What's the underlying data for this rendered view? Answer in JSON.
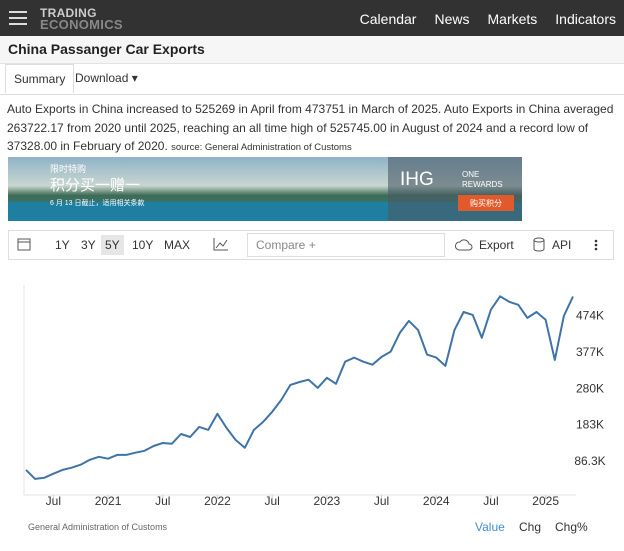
{
  "header": {
    "logo": [
      "TRADING",
      "ECONOMICS"
    ],
    "nav": [
      "Calendar",
      "News",
      "Markets",
      "Indicators"
    ]
  },
  "page_title": "China Passanger Car Exports",
  "tabs": [
    "Summary",
    "Download"
  ],
  "description": {
    "text": "Auto Exports in China increased to 525269 in April from 473751 in March of 2025. Auto Exports in China averaged 263722.17 from 2020 until 2025, reaching an all time high of 525745.00 in August of 2024 and a record low of 37328.00 in February of 2020.",
    "source": "source: General Administration of Customs"
  },
  "ad": {
    "tag": "限时特购",
    "headline": "积分买一赠一",
    "sub": "6 月 13 日截止，适用相关条款",
    "brand": "IHG",
    "program": [
      "ONE",
      "REWARDS"
    ],
    "button": "购买积分"
  },
  "toolbar": {
    "ranges": [
      "1Y",
      "3Y",
      "5Y",
      "10Y",
      "MAX"
    ],
    "compare": "Compare +",
    "export": "Export",
    "api": "API"
  },
  "chart_data": {
    "type": "line",
    "x": [
      "2020-04",
      "2020-05",
      "2020-06",
      "2020-07",
      "2020-08",
      "2020-09",
      "2020-10",
      "2020-11",
      "2020-12",
      "2021-01",
      "2021-02",
      "2021-03",
      "2021-04",
      "2021-05",
      "2021-06",
      "2021-07",
      "2021-08",
      "2021-09",
      "2021-10",
      "2021-11",
      "2021-12",
      "2022-01",
      "2022-02",
      "2022-03",
      "2022-04",
      "2022-05",
      "2022-06",
      "2022-07",
      "2022-08",
      "2022-09",
      "2022-10",
      "2022-11",
      "2022-12",
      "2023-01",
      "2023-02",
      "2023-03",
      "2023-04",
      "2023-05",
      "2023-06",
      "2023-07",
      "2023-08",
      "2023-09",
      "2023-10",
      "2023-11",
      "2023-12",
      "2024-01",
      "2024-02",
      "2024-03",
      "2024-04",
      "2024-05",
      "2024-06",
      "2024-07",
      "2024-08",
      "2024-09",
      "2024-10",
      "2024-11",
      "2024-12",
      "2025-01",
      "2025-02",
      "2025-03",
      "2025-04"
    ],
    "series": [
      {
        "color": "#3f74a8",
        "values": [
          62000,
          38000,
          41000,
          52000,
          62000,
          68000,
          76000,
          89000,
          97000,
          92000,
          102000,
          102000,
          108000,
          113000,
          126000,
          134000,
          132000,
          158000,
          150000,
          177000,
          169000,
          212000,
          174000,
          142000,
          121000,
          169000,
          190000,
          217000,
          249000,
          289000,
          297000,
          303000,
          281000,
          308000,
          292000,
          351000,
          362000,
          351000,
          343000,
          364000,
          378000,
          428000,
          460000,
          436000,
          370000,
          362000,
          340000,
          436000,
          484000,
          476000,
          415000,
          490000,
          525745,
          511000,
          503000,
          468000,
          484000,
          463000,
          356000,
          473751,
          525269
        ]
      }
    ],
    "xlim": [
      "2020-04",
      "2025-04"
    ],
    "xticks": [
      {
        "value": "2020-07",
        "label": "Jul"
      },
      {
        "value": "2021-01",
        "label": "2021"
      },
      {
        "value": "2021-07",
        "label": "Jul"
      },
      {
        "value": "2022-01",
        "label": "2022"
      },
      {
        "value": "2022-07",
        "label": "Jul"
      },
      {
        "value": "2023-01",
        "label": "2023"
      },
      {
        "value": "2023-07",
        "label": "Jul"
      },
      {
        "value": "2024-01",
        "label": "2024"
      },
      {
        "value": "2024-07",
        "label": "Jul"
      },
      {
        "value": "2025-01",
        "label": "2025"
      }
    ],
    "ylim": [
      -5000,
      556000
    ],
    "yticks": [
      {
        "value": 86300,
        "label": "86.3K"
      },
      {
        "value": 183000,
        "label": "183K"
      },
      {
        "value": 280000,
        "label": "280K"
      },
      {
        "value": 377000,
        "label": "377K"
      },
      {
        "value": 474000,
        "label": "474K"
      }
    ],
    "grid": false
  },
  "footer": {
    "source": "General Administration of Customs",
    "views": [
      "Value",
      "Chg",
      "Chg%"
    ]
  }
}
